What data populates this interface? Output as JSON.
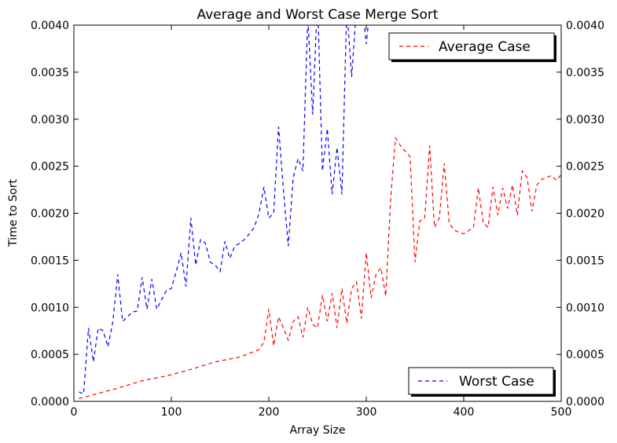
{
  "chart_data": {
    "type": "line",
    "title": "Average and Worst Case Merge Sort",
    "xlabel": "Array Size",
    "ylabel": "Time to Sort",
    "xlim": [
      0,
      500
    ],
    "ylim": [
      0,
      0.004
    ],
    "x_ticks": [
      "0",
      "100",
      "200",
      "300",
      "400",
      "500"
    ],
    "y_ticks": [
      "0.0000",
      "0.0005",
      "0.0010",
      "0.0015",
      "0.0020",
      "0.0025",
      "0.0030",
      "0.0035",
      "0.0040"
    ],
    "grid": false,
    "line_style": "dashed",
    "series": [
      {
        "name": "Average Case",
        "color": "#ff0000",
        "legend_position": "top-right",
        "x": [
          5,
          20,
          45,
          70,
          95,
          120,
          145,
          170,
          190,
          195,
          200,
          205,
          210,
          215,
          220,
          225,
          230,
          235,
          240,
          245,
          250,
          255,
          260,
          265,
          270,
          275,
          280,
          285,
          290,
          295,
          300,
          305,
          310,
          315,
          320,
          325,
          330,
          335,
          345,
          350,
          355,
          360,
          365,
          370,
          375,
          380,
          385,
          390,
          400,
          410,
          415,
          420,
          425,
          430,
          435,
          440,
          445,
          450,
          455,
          460,
          465,
          470,
          475,
          480,
          490,
          495,
          500
        ],
        "y": [
          3e-05,
          7e-05,
          0.00014,
          0.00022,
          0.00027,
          0.00034,
          0.00042,
          0.00047,
          0.00055,
          0.00063,
          0.00098,
          0.00059,
          0.0009,
          0.00078,
          0.00065,
          0.00085,
          0.0009,
          0.00068,
          0.001,
          0.00082,
          0.00078,
          0.00113,
          0.00085,
          0.00115,
          0.00078,
          0.0012,
          0.00083,
          0.0012,
          0.00127,
          0.00088,
          0.00158,
          0.0011,
          0.00135,
          0.00142,
          0.00112,
          0.00215,
          0.0028,
          0.00272,
          0.0026,
          0.00148,
          0.00192,
          0.00195,
          0.00272,
          0.00185,
          0.00195,
          0.00253,
          0.0019,
          0.00182,
          0.00178,
          0.00185,
          0.00227,
          0.0019,
          0.00185,
          0.00228,
          0.00198,
          0.00227,
          0.00205,
          0.0023,
          0.00198,
          0.00245,
          0.00238,
          0.00202,
          0.0023,
          0.00236,
          0.0024,
          0.00235,
          0.00241
        ]
      },
      {
        "name": "Worst Case",
        "color": "#0000ff",
        "legend_position": "bottom-right",
        "x": [
          5,
          10,
          15,
          20,
          25,
          30,
          35,
          40,
          45,
          50,
          60,
          65,
          70,
          75,
          80,
          85,
          90,
          95,
          100,
          105,
          110,
          115,
          120,
          125,
          130,
          135,
          140,
          145,
          150,
          155,
          160,
          165,
          170,
          175,
          180,
          185,
          190,
          195,
          200,
          205,
          210,
          215,
          220,
          225,
          230,
          235,
          240,
          245,
          250,
          255,
          260,
          265,
          270,
          275,
          280,
          285,
          290,
          295,
          300,
          305
        ],
        "y": [
          0.0001,
          8e-05,
          0.00078,
          0.00042,
          0.00078,
          0.00075,
          0.00058,
          0.00085,
          0.00135,
          0.00085,
          0.00095,
          0.00096,
          0.00132,
          0.00098,
          0.0013,
          0.00098,
          0.00108,
          0.00118,
          0.0012,
          0.00138,
          0.00158,
          0.00122,
          0.00195,
          0.00145,
          0.00172,
          0.00168,
          0.00148,
          0.00145,
          0.00138,
          0.0017,
          0.00152,
          0.00165,
          0.00168,
          0.00172,
          0.00178,
          0.00185,
          0.002,
          0.00228,
          0.00195,
          0.002,
          0.00292,
          0.00225,
          0.00165,
          0.00238,
          0.00258,
          0.00245,
          0.0041,
          0.00305,
          0.0043,
          0.00245,
          0.0029,
          0.0022,
          0.0027,
          0.0022,
          0.0042,
          0.00345,
          0.0042,
          0.0043,
          0.0038,
          0.0043
        ]
      }
    ]
  }
}
